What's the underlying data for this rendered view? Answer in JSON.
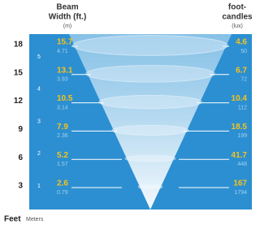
{
  "header": {
    "beam_title_lines": [
      "Beam",
      "Width (ft.)"
    ],
    "beam_unit": "(m)",
    "fc_title_lines": [
      "foot-",
      "candles"
    ],
    "fc_unit": "(lux)"
  },
  "feet_scale": [
    "18",
    "15",
    "12",
    "9",
    "6",
    "3"
  ],
  "meter_scale": [
    "5",
    "4",
    "3",
    "2",
    "1"
  ],
  "rows": [
    {
      "beam_ft": "15.7",
      "beam_m": "4.71",
      "fc": "4.6",
      "lux": "50"
    },
    {
      "beam_ft": "13.1",
      "beam_m": "3.93",
      "fc": "6.7",
      "lux": "72"
    },
    {
      "beam_ft": "10.5",
      "beam_m": "3.14",
      "fc": "10.4",
      "lux": "112"
    },
    {
      "beam_ft": "7.9",
      "beam_m": "2.36",
      "fc": "18.5",
      "lux": "199"
    },
    {
      "beam_ft": "5.2",
      "beam_m": "1.57",
      "fc": "41.7",
      "lux": "448"
    },
    {
      "beam_ft": "2.6",
      "beam_m": "0.79",
      "fc": "167",
      "lux": "1794"
    }
  ],
  "footer": {
    "feet": "Feet",
    "meters": "Meters"
  }
}
